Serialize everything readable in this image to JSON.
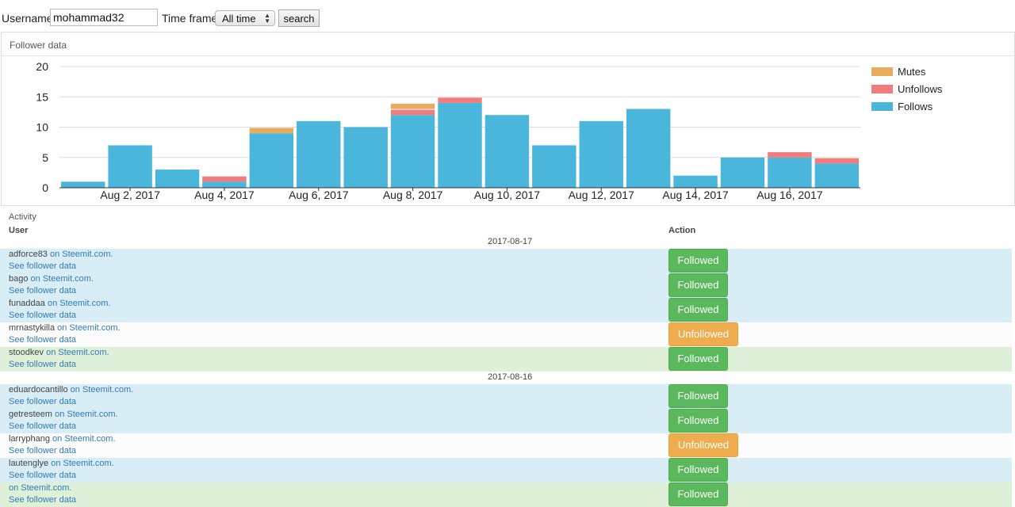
{
  "search": {
    "username_label": "Username",
    "username_value": "mohammad32",
    "timeframe_label": "Time frame",
    "timeframe_selected": "All time",
    "search_label": "search"
  },
  "panel": {
    "title": "Follower data"
  },
  "chart_data": {
    "type": "bar",
    "stacked": true,
    "categories": [
      "Aug 1, 2017",
      "Aug 2, 2017",
      "Aug 3, 2017",
      "Aug 4, 2017",
      "Aug 5, 2017",
      "Aug 6, 2017",
      "Aug 7, 2017",
      "Aug 8, 2017",
      "Aug 9, 2017",
      "Aug 10, 2017",
      "Aug 11, 2017",
      "Aug 12, 2017",
      "Aug 13, 2017",
      "Aug 14, 2017",
      "Aug 15, 2017",
      "Aug 16, 2017",
      "Aug 17, 2017"
    ],
    "tick_labels": [
      "Aug 2, 2017",
      "Aug 4, 2017",
      "Aug 6, 2017",
      "Aug 8, 2017",
      "Aug 10, 2017",
      "Aug 12, 2017",
      "Aug 14, 2017",
      "Aug 16, 2017"
    ],
    "series": [
      {
        "name": "Follows",
        "color": "#4ab6dc",
        "values": [
          1,
          7,
          3,
          1,
          9,
          11,
          10,
          12,
          14,
          12,
          7,
          11,
          13,
          2,
          5,
          5,
          4
        ]
      },
      {
        "name": "Unfollows",
        "color": "#f07c7c",
        "values": [
          0,
          0,
          0,
          1,
          0,
          0,
          0,
          1,
          1,
          0,
          0,
          0,
          0,
          0,
          0,
          1,
          1
        ]
      },
      {
        "name": "Mutes",
        "color": "#e8ad5c",
        "values": [
          0,
          0,
          0,
          0,
          1,
          0,
          0,
          1,
          0,
          0,
          0,
          0,
          0,
          0,
          0,
          0,
          0
        ]
      }
    ],
    "legend_order": [
      "Mutes",
      "Unfollows",
      "Follows"
    ],
    "y_ticks": [
      0,
      5,
      10,
      15,
      20
    ],
    "ylim": [
      0,
      20
    ],
    "grid": true,
    "legend_position": "right"
  },
  "activity": {
    "title": "Activity",
    "col_user": "User",
    "col_action": "Action",
    "see_label": "See follower data",
    "site_suffix": " on Steemit.com.",
    "groups": [
      {
        "date": "2017-08-17",
        "rows": [
          {
            "user": "adforce83",
            "action": "Followed",
            "kind": "follow"
          },
          {
            "user": "bago",
            "action": "Followed",
            "kind": "follow"
          },
          {
            "user": "funaddaa",
            "action": "Followed",
            "kind": "follow"
          },
          {
            "user": "mrnastykilla",
            "action": "Unfollowed",
            "kind": "unfollow"
          },
          {
            "user": "stoodkev",
            "action": "Followed",
            "kind": "mute"
          }
        ]
      },
      {
        "date": "2017-08-16",
        "rows": [
          {
            "user": "eduardocantillo",
            "action": "Followed",
            "kind": "follow"
          },
          {
            "user": "getresteem",
            "action": "Followed",
            "kind": "follow"
          },
          {
            "user": "larryphang",
            "action": "Unfollowed",
            "kind": "unfollow"
          },
          {
            "user": "lautenglye",
            "action": "Followed",
            "kind": "follow"
          },
          {
            "user": "",
            "action": "Followed",
            "kind": "mute"
          }
        ]
      }
    ]
  }
}
